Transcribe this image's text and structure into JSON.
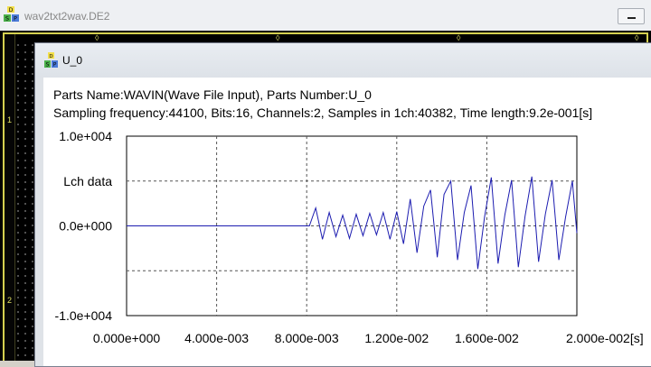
{
  "app": {
    "title": "wav2txt2wav.DE2",
    "icon": "dsp-app-icon",
    "icon_letters": [
      "D",
      "S",
      "P"
    ]
  },
  "workspace": {
    "row_labels": [
      "1",
      "2"
    ]
  },
  "window": {
    "title": "U_0",
    "icon": "dsp-part-icon"
  },
  "info": {
    "line1": "Parts Name:WAVIN(Wave File Input), Parts Number:U_0",
    "line2": "Sampling frequency:44100, Bits:16, Channels:2, Samples in 1ch:40382, Time length:9.2e-001[s]"
  },
  "chart_data": {
    "type": "line",
    "title": "",
    "series": [
      {
        "name": "Lch data",
        "color": "#1c1cb0",
        "x": [
          0,
          0.00812,
          0.0084,
          0.0087,
          0.009,
          0.0093,
          0.0096,
          0.0099,
          0.0102,
          0.0105,
          0.0108,
          0.0111,
          0.0114,
          0.0117,
          0.012,
          0.0123,
          0.0126,
          0.0129,
          0.0132,
          0.0135,
          0.0138,
          0.0141,
          0.0144,
          0.0147,
          0.015,
          0.0153,
          0.0156,
          0.0159,
          0.0162,
          0.0165,
          0.0168,
          0.0171,
          0.0174,
          0.0177,
          0.018,
          0.0183,
          0.0186,
          0.0189,
          0.0192,
          0.0195,
          0.0198,
          0.02
        ],
        "y": [
          0,
          0,
          2000,
          -1500,
          1500,
          -1200,
          1200,
          -1400,
          1300,
          -1100,
          1400,
          -1000,
          1500,
          -1500,
          1600,
          -2000,
          3000,
          -3000,
          2200,
          4000,
          -3500,
          3500,
          5000,
          -3800,
          1500,
          4500,
          -4800,
          1000,
          5400,
          -4200,
          1200,
          5100,
          -4600,
          1100,
          5500,
          -4000,
          1300,
          5100,
          -3800,
          1000,
          5000,
          -800
        ]
      }
    ],
    "xlim": [
      0,
      0.02
    ],
    "ylim": [
      -10000,
      10000
    ],
    "x_ticks": [
      "0.000e+000",
      "4.000e-003",
      "8.000e-003",
      "1.200e-002",
      "1.600e-002",
      "2.000e-002[s]"
    ],
    "y_ticks": [
      "1.0e+004",
      "Lch data",
      "0.0e+000",
      "-1.0e+004"
    ],
    "grid": true
  }
}
